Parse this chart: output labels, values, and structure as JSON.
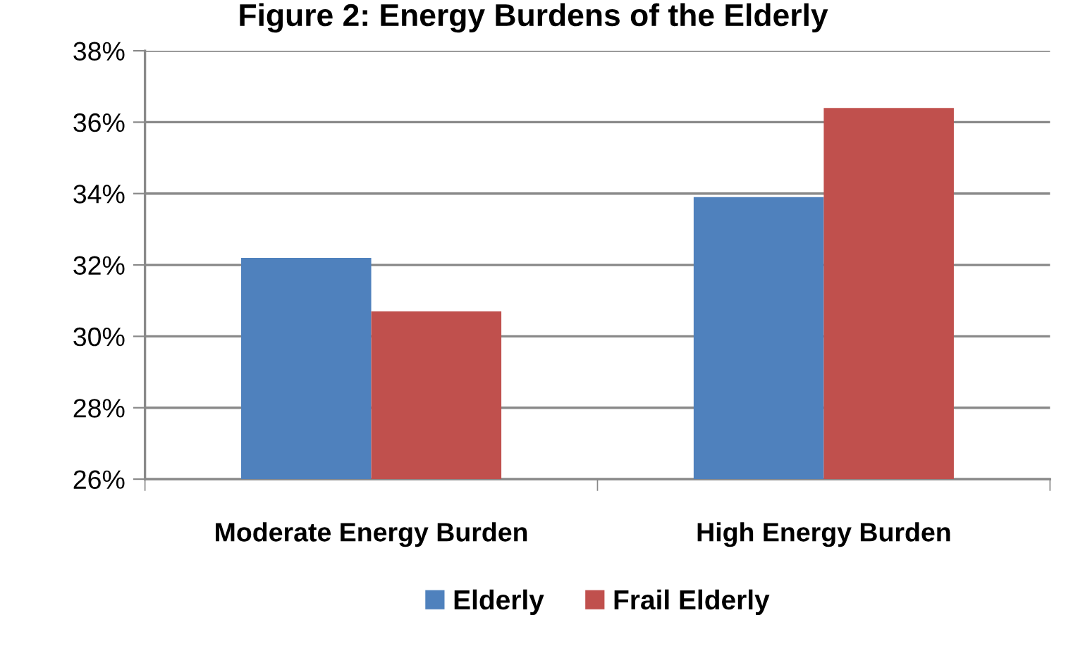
{
  "chart_data": {
    "type": "bar",
    "title": "Figure 2: Energy Burdens of the Elderly",
    "categories": [
      "Moderate Energy Burden",
      "High Energy Burden"
    ],
    "series": [
      {
        "name": "Elderly",
        "color": "#4f81bd",
        "values": [
          32.2,
          33.9
        ]
      },
      {
        "name": "Frail Elderly",
        "color": "#c0504d",
        "values": [
          30.7,
          36.4
        ]
      }
    ],
    "ylim": [
      26,
      38
    ],
    "yticks": [
      {
        "value": 26,
        "label": "26%"
      },
      {
        "value": 28,
        "label": "28%"
      },
      {
        "value": 30,
        "label": "30%"
      },
      {
        "value": 32,
        "label": "32%"
      },
      {
        "value": 34,
        "label": "34%"
      },
      {
        "value": 36,
        "label": "36%"
      },
      {
        "value": 38,
        "label": "38%"
      }
    ],
    "grid": "y",
    "legend": "bottom"
  }
}
